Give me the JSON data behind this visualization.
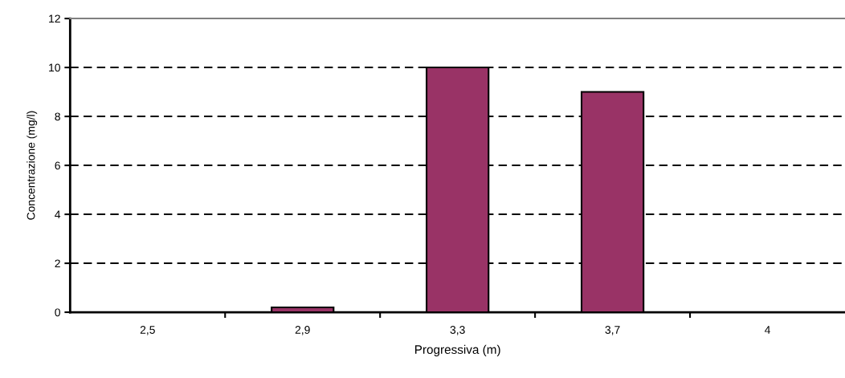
{
  "chart_data": {
    "type": "bar",
    "xlabel": "Progressiva (m)",
    "ylabel": "Concentrazione (mg/l)",
    "categories": [
      "2,5",
      "2,9",
      "3,3",
      "3,7",
      "4"
    ],
    "values": [
      0,
      0.2,
      10,
      9,
      0
    ],
    "color": "#993366",
    "ylim": [
      0,
      12
    ],
    "yticks": [
      0,
      2,
      4,
      6,
      8,
      10,
      12
    ],
    "grid": "y",
    "line_style": "dashed"
  }
}
